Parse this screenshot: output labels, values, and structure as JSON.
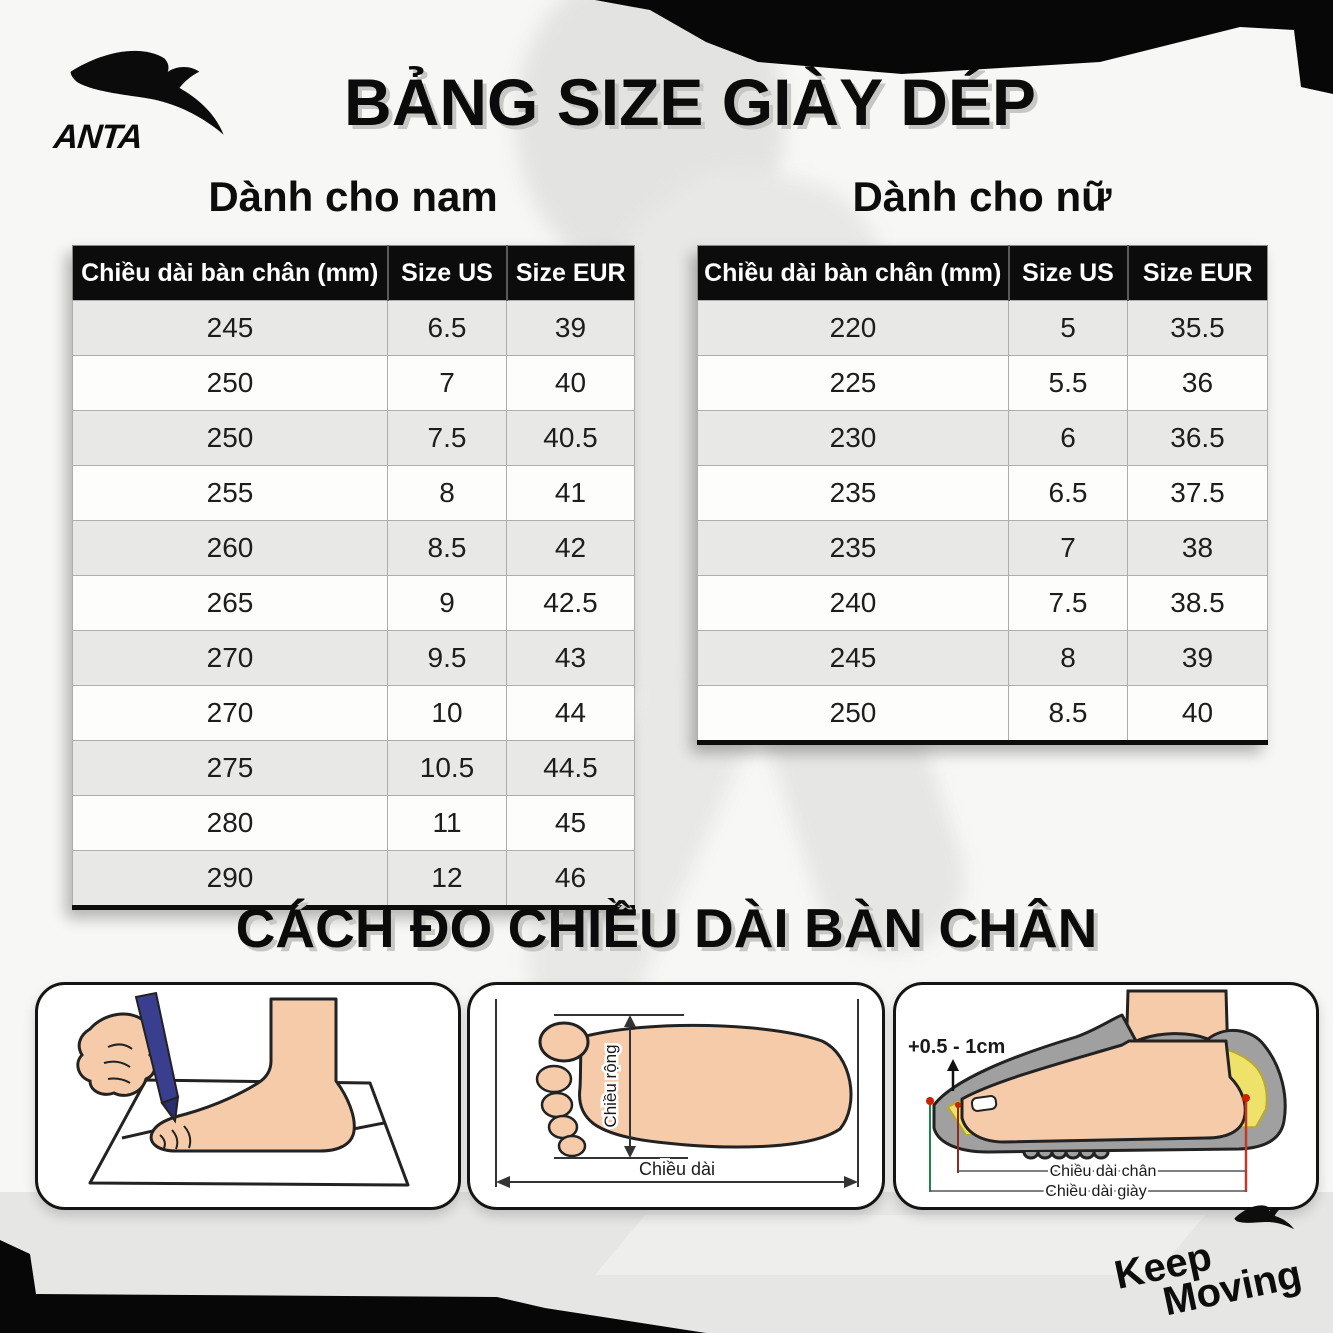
{
  "brand": {
    "name": "ANTA",
    "tagline_line1": "Keep",
    "tagline_line2": "Moving"
  },
  "header": {
    "title": "BẢNG SIZE GIÀY DÉP"
  },
  "size_tables": {
    "men": {
      "heading": "Dành cho nam",
      "columns": [
        "Chiều dài bàn chân (mm)",
        "Size US",
        "Size EUR"
      ],
      "rows": [
        [
          "245",
          "6.5",
          "39"
        ],
        [
          "250",
          "7",
          "40"
        ],
        [
          "250",
          "7.5",
          "40.5"
        ],
        [
          "255",
          "8",
          "41"
        ],
        [
          "260",
          "8.5",
          "42"
        ],
        [
          "265",
          "9",
          "42.5"
        ],
        [
          "270",
          "9.5",
          "43"
        ],
        [
          "270",
          "10",
          "44"
        ],
        [
          "275",
          "10.5",
          "44.5"
        ],
        [
          "280",
          "11",
          "45"
        ],
        [
          "290",
          "12",
          "46"
        ]
      ]
    },
    "women": {
      "heading": "Dành cho nữ",
      "columns": [
        "Chiều dài bàn chân (mm)",
        "Size US",
        "Size EUR"
      ],
      "rows": [
        [
          "220",
          "5",
          "35.5"
        ],
        [
          "225",
          "5.5",
          "36"
        ],
        [
          "230",
          "6",
          "36.5"
        ],
        [
          "235",
          "6.5",
          "37.5"
        ],
        [
          "235",
          "7",
          "38"
        ],
        [
          "240",
          "7.5",
          "38.5"
        ],
        [
          "245",
          "8",
          "39"
        ],
        [
          "250",
          "8.5",
          "40"
        ]
      ]
    }
  },
  "measure_section": {
    "title": "CÁCH ĐO CHIỀU DÀI BÀN CHÂN",
    "foot_panel": {
      "width_label": "Chiều rộng",
      "length_label": "Chiều dài"
    },
    "shoe_panel": {
      "allowance_label": "+0.5 - 1cm",
      "foot_length_label": "Chiều dài chân",
      "shoe_length_label": "Chiều dài giày"
    }
  },
  "colors": {
    "table_header_bg": "#0c0c0c",
    "row_alt_gray": "#e8e8e6",
    "torn_black": "#070707",
    "skin": "#f6cba9",
    "pen_blue": "#3a3e8f",
    "insole_yellow": "#efe26a",
    "shoe_gray": "#a0a0a0",
    "measure_red": "#c0392b",
    "measure_green": "#1e8449"
  }
}
